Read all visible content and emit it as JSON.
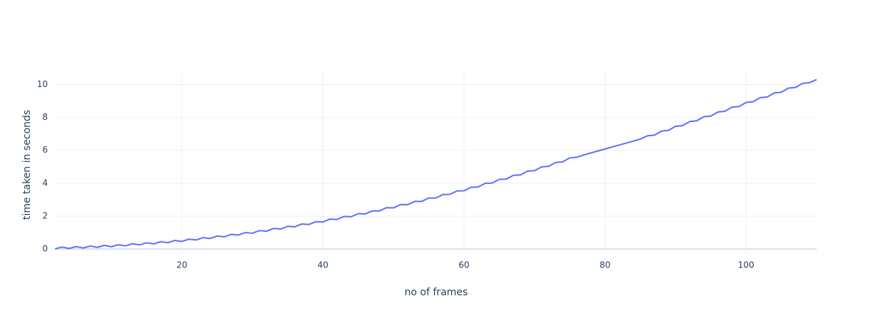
{
  "chart_data": {
    "type": "line",
    "xlabel": "no of frames",
    "ylabel": "time taken in seconds",
    "x": [
      2,
      3,
      4,
      5,
      6,
      7,
      8,
      9,
      10,
      11,
      12,
      13,
      14,
      15,
      16,
      17,
      18,
      19,
      20,
      21,
      22,
      23,
      24,
      25,
      26,
      27,
      28,
      29,
      30,
      31,
      32,
      33,
      34,
      35,
      36,
      37,
      38,
      39,
      40,
      41,
      42,
      43,
      44,
      45,
      46,
      47,
      48,
      49,
      50,
      51,
      52,
      53,
      54,
      55,
      56,
      57,
      58,
      59,
      60,
      61,
      62,
      63,
      64,
      65,
      66,
      67,
      68,
      69,
      70,
      71,
      72,
      73,
      74,
      75,
      76,
      77,
      78,
      79,
      80,
      81,
      82,
      83,
      84,
      85,
      86,
      87,
      88,
      89,
      90,
      91,
      92,
      93,
      94,
      95,
      96,
      97,
      98,
      99,
      100,
      101,
      102,
      103,
      104,
      105,
      106,
      107,
      108,
      109,
      110
    ],
    "series": [
      {
        "color": "#636efa",
        "values": [
          0.01,
          0.12,
          0.03,
          0.15,
          0.06,
          0.18,
          0.1,
          0.22,
          0.14,
          0.26,
          0.19,
          0.32,
          0.25,
          0.38,
          0.31,
          0.45,
          0.38,
          0.52,
          0.46,
          0.6,
          0.55,
          0.69,
          0.64,
          0.79,
          0.74,
          0.89,
          0.85,
          1.0,
          0.96,
          1.12,
          1.08,
          1.25,
          1.21,
          1.38,
          1.35,
          1.52,
          1.49,
          1.66,
          1.64,
          1.82,
          1.8,
          1.98,
          1.96,
          2.15,
          2.13,
          2.32,
          2.31,
          2.51,
          2.5,
          2.7,
          2.69,
          2.89,
          2.89,
          3.1,
          3.1,
          3.31,
          3.32,
          3.53,
          3.54,
          3.75,
          3.77,
          3.99,
          4.01,
          4.23,
          4.25,
          4.48,
          4.5,
          4.73,
          4.76,
          4.99,
          5.03,
          5.26,
          5.3,
          5.54,
          5.58,
          5.72,
          5.84,
          5.96,
          6.08,
          6.2,
          6.32,
          6.44,
          6.56,
          6.68,
          6.88,
          6.92,
          7.17,
          7.21,
          7.46,
          7.5,
          7.75,
          7.79,
          8.04,
          8.08,
          8.33,
          8.37,
          8.62,
          8.66,
          8.91,
          8.95,
          9.2,
          9.24,
          9.49,
          9.53,
          9.78,
          9.82,
          10.07,
          10.11,
          10.3
        ]
      }
    ],
    "xlim": [
      2,
      110
    ],
    "xticks": [
      20,
      40,
      60,
      80,
      100
    ],
    "ylim": [
      -0.3,
      10.8
    ],
    "yticks": [
      0,
      2,
      4,
      6,
      8,
      10
    ],
    "grid": true
  }
}
